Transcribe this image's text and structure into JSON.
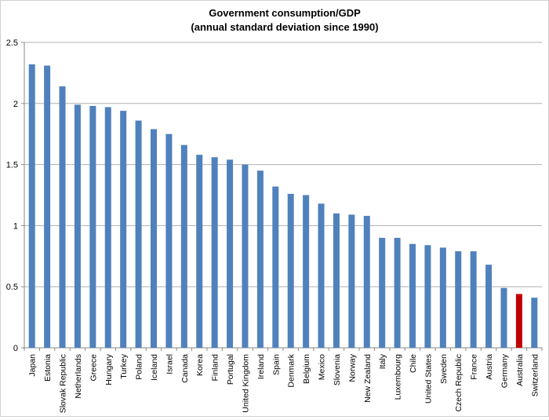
{
  "chart_data": {
    "type": "bar",
    "title": "Government consumption/GDP",
    "subtitle": "(annual standard deviation since 1990)",
    "xlabel": "",
    "ylabel": "",
    "ylim": [
      0,
      2.5
    ],
    "yticks": [
      0,
      0.5,
      1,
      1.5,
      2,
      2.5
    ],
    "ytick_labels": [
      "0",
      "0.5",
      "1",
      "1.5",
      "2",
      "2.5"
    ],
    "grid": true,
    "legend": "none",
    "colors": {
      "default": "#4f81bd",
      "highlight": "#c00000"
    },
    "highlight": "Australia",
    "categories": [
      "Japan",
      "Estonia",
      "Slovak Republic",
      "Netherlands",
      "Greece",
      "Hungary",
      "Turkey",
      "Poland",
      "Iceland",
      "Israel",
      "Canada",
      "Korea",
      "Finland",
      "Portugal",
      "United Kingdom",
      "Ireland",
      "Spain",
      "Denmark",
      "Belgium",
      "Mexico",
      "Slovenia",
      "Norway",
      "New Zealand",
      "Italy",
      "Luxembourg",
      "Chile",
      "United States",
      "Sweden",
      "Czech Republic",
      "France",
      "Austria",
      "Germany",
      "Australia",
      "Switzerland"
    ],
    "values": [
      2.32,
      2.31,
      2.14,
      1.99,
      1.98,
      1.97,
      1.94,
      1.86,
      1.79,
      1.75,
      1.66,
      1.58,
      1.56,
      1.54,
      1.5,
      1.45,
      1.32,
      1.26,
      1.25,
      1.18,
      1.1,
      1.09,
      1.08,
      0.9,
      0.9,
      0.85,
      0.84,
      0.82,
      0.79,
      0.79,
      0.68,
      0.49,
      0.44,
      0.41
    ]
  }
}
